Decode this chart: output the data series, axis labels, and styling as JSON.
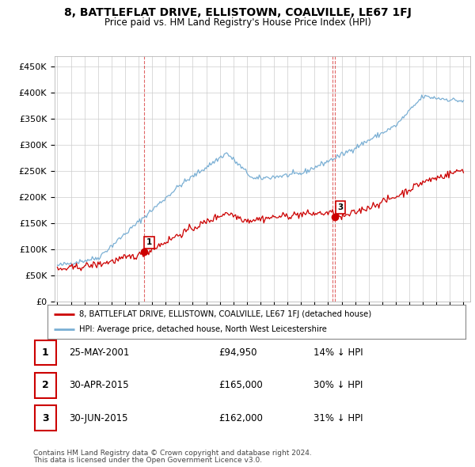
{
  "title": "8, BATTLEFLAT DRIVE, ELLISTOWN, COALVILLE, LE67 1FJ",
  "subtitle": "Price paid vs. HM Land Registry's House Price Index (HPI)",
  "red_label": "8, BATTLEFLAT DRIVE, ELLISTOWN, COALVILLE, LE67 1FJ (detached house)",
  "blue_label": "HPI: Average price, detached house, North West Leicestershire",
  "transactions": [
    {
      "num": 1,
      "date": "25-MAY-2001",
      "price": 94950,
      "pct": "14%",
      "dir": "↓",
      "year_x": 2001.4
    },
    {
      "num": 2,
      "date": "30-APR-2015",
      "price": 165000,
      "pct": "30%",
      "dir": "↓",
      "year_x": 2015.33
    },
    {
      "num": 3,
      "date": "30-JUN-2015",
      "price": 162000,
      "pct": "31%",
      "dir": "↓",
      "year_x": 2015.5
    }
  ],
  "footer1": "Contains HM Land Registry data © Crown copyright and database right 2024.",
  "footer2": "This data is licensed under the Open Government Licence v3.0.",
  "ylim": [
    0,
    470000
  ],
  "xlim_start": 1994.8,
  "xlim_end": 2025.5,
  "red_color": "#cc0000",
  "blue_color": "#7aafd4",
  "grid_color": "#cccccc",
  "background_color": "#ffffff",
  "plot_bg_color": "#ffffff"
}
